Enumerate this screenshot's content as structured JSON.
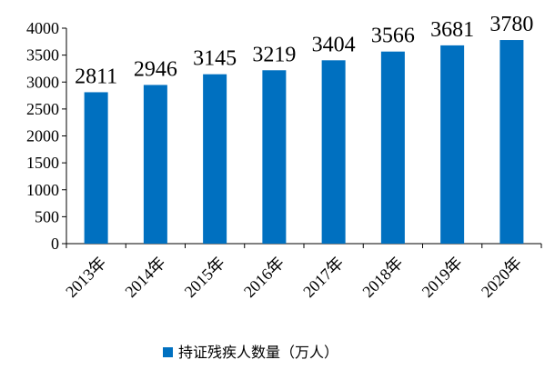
{
  "chart_data": {
    "type": "bar",
    "categories": [
      "2013年",
      "2014年",
      "2015年",
      "2016年",
      "2017年",
      "2018年",
      "2019年",
      "2020年"
    ],
    "series": [
      {
        "name": "持证残疾人数量（万人）",
        "values": [
          2811,
          2946,
          3145,
          3219,
          3404,
          3566,
          3681,
          3780
        ],
        "color": "#0070C0"
      }
    ],
    "ylim": [
      0,
      4000
    ],
    "yticks": [
      0,
      500,
      1000,
      1500,
      2000,
      2500,
      3000,
      3500,
      4000
    ],
    "grid": false,
    "legend_position": "bottom",
    "data_labels": true
  }
}
